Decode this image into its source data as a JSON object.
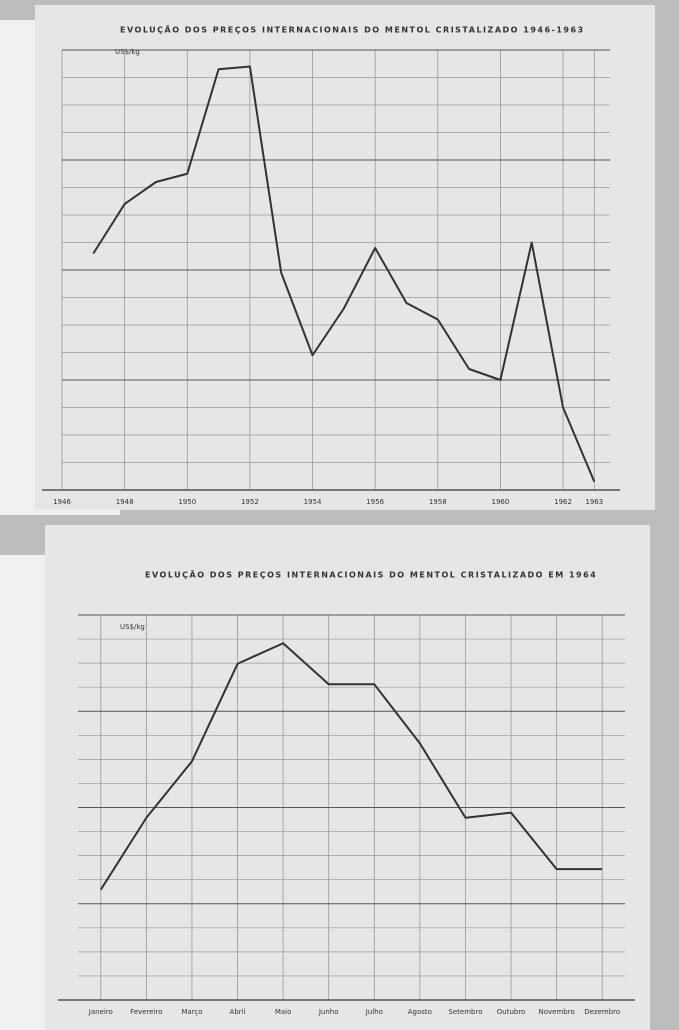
{
  "chart_data": [
    {
      "type": "line",
      "title": "EVOLUÇÃO DOS PREÇOS INTERNACIONAIS DO MENTOL CRISTALIZADO 1946-1963",
      "y_label": "US$/kg",
      "x": [
        1947,
        1948,
        1949,
        1950,
        1951,
        1952,
        1953,
        1954,
        1955,
        1956,
        1957,
        1958,
        1959,
        1960,
        1961,
        1962,
        1963
      ],
      "series": [
        {
          "color": "#333333",
          "values": [
            8.6,
            10.4,
            11.2,
            11.5,
            15.3,
            15.4,
            7.9,
            4.9,
            6.6,
            8.8,
            6.8,
            6.2,
            4.4,
            4.0,
            9.0,
            3.0,
            0.3
          ]
        }
      ],
      "xlim": [
        1946,
        1963.5
      ],
      "xticks": [
        1946,
        1948,
        1950,
        1952,
        1954,
        1956,
        1958,
        1960,
        1962,
        1963
      ],
      "ylim": [
        0,
        16
      ],
      "grid": true
    },
    {
      "type": "line",
      "title": "EVOLUÇÃO DOS PREÇOS INTERNACIONAIS DO MENTOL CRISTALIZADO EM 1964",
      "y_label": "US$/kg",
      "categories": [
        "Janeiro",
        "Fevereiro",
        "Março",
        "Abril",
        "Maio",
        "Junho",
        "Julho",
        "Agosto",
        "Setembro",
        "Outubro",
        "Novembro",
        "Dezembro"
      ],
      "series": [
        {
          "color": "#333333",
          "values": [
            4.3,
            7.1,
            9.3,
            13.1,
            13.9,
            12.3,
            12.3,
            10.0,
            7.1,
            7.3,
            5.1,
            5.1
          ]
        }
      ],
      "ylim": [
        0,
        15
      ],
      "grid": true
    }
  ]
}
